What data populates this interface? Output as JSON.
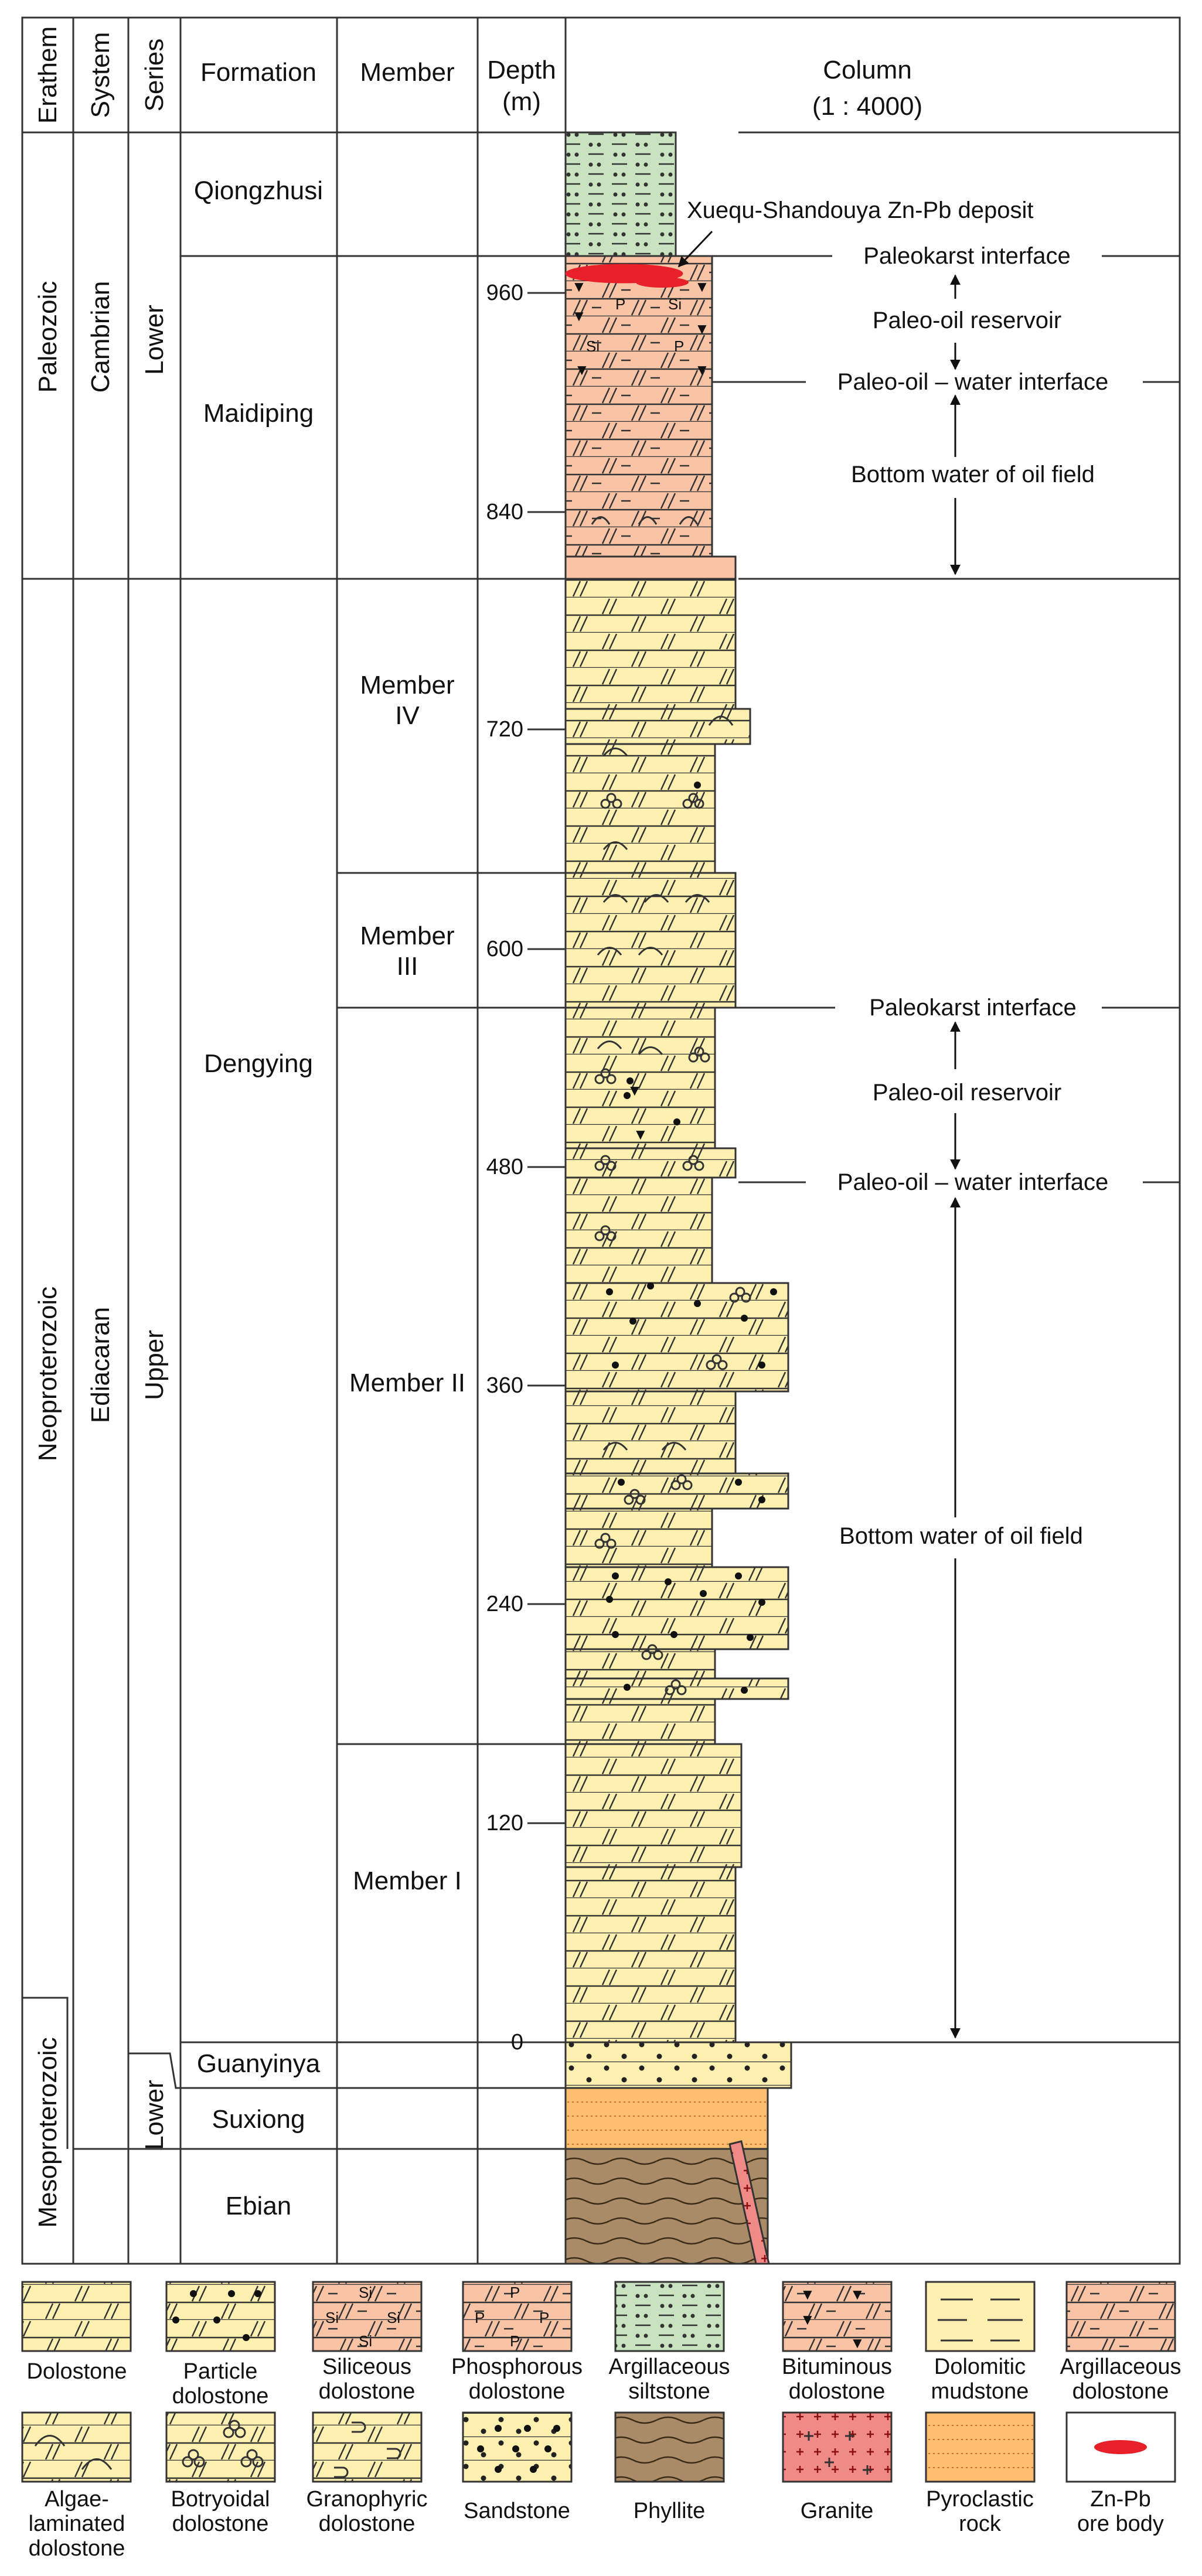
{
  "headers": {
    "erathem": "Erathem",
    "system": "System",
    "series": "Series",
    "formation": "Formation",
    "member": "Member",
    "depth": "Depth",
    "depth_unit": "(m)",
    "column": "Column",
    "column_scale": "(1 : 4000)"
  },
  "erathems": {
    "paleozoic": "Paleozoic",
    "neoproterozoic": "Neoproterozoic",
    "mesoproterozoic": "Mesoproterozoic"
  },
  "systems": {
    "cambrian": "Cambrian",
    "ediacaran": "Ediacaran"
  },
  "series": {
    "cambrian_lower": "Lower",
    "ediacaran_upper": "Upper",
    "ediacaran_lower": "Lower"
  },
  "formations": {
    "qiongzhusi": "Qiongzhusi",
    "maidiping": "Maidiping",
    "dengying": "Dengying",
    "guanyinya": "Guanyinya",
    "suxiong": "Suxiong",
    "ebian": "Ebian"
  },
  "members": {
    "iv_line1": "Member",
    "iv_line2": "IV",
    "iii_line1": "Member",
    "iii_line2": "III",
    "ii": "Member II",
    "i": "Member I"
  },
  "depth_ticks": [
    "960",
    "840",
    "720",
    "600",
    "480",
    "360",
    "240",
    "120",
    "0"
  ],
  "annotations": {
    "deposit": "Xuequ-Shandouya Zn-Pb deposit",
    "upper_paleokarst": "Paleokarst interface",
    "upper_reservoir": "Paleo-oil reservoir",
    "upper_owc": "Paleo-oil – water interface",
    "upper_bottom_water": "Bottom water of oil field",
    "lower_paleokarst": "Paleokarst interface",
    "lower_reservoir": "Paleo-oil reservoir",
    "lower_owc": "Paleo-oil – water interface",
    "lower_bottom_water": "Bottom water of oil field"
  },
  "legend": [
    {
      "id": "dolostone",
      "lines": [
        "Dolostone"
      ]
    },
    {
      "id": "particle",
      "lines": [
        "Particle",
        "dolostone"
      ]
    },
    {
      "id": "siliceous",
      "lines": [
        "Siliceous",
        "dolostone"
      ]
    },
    {
      "id": "phosphorous",
      "lines": [
        "Phosphorous",
        "dolostone"
      ]
    },
    {
      "id": "argsilt",
      "lines": [
        "Argillaceous",
        "siltstone"
      ]
    },
    {
      "id": "bituminous",
      "lines": [
        "Bituminous",
        "dolostone"
      ]
    },
    {
      "id": "dolmud",
      "lines": [
        "Dolomitic",
        "mudstone"
      ]
    },
    {
      "id": "argdol",
      "lines": [
        "Argillaceous",
        "dolostone"
      ]
    },
    {
      "id": "algae",
      "lines": [
        "Algae-",
        "laminated",
        "dolostone"
      ]
    },
    {
      "id": "botryoidal",
      "lines": [
        "Botryoidal",
        "dolostone"
      ]
    },
    {
      "id": "granophyric",
      "lines": [
        "Granophyric",
        "dolostone"
      ]
    },
    {
      "id": "sandstone",
      "lines": [
        "Sandstone"
      ]
    },
    {
      "id": "phyllite",
      "lines": [
        "Phyllite"
      ]
    },
    {
      "id": "granite",
      "lines": [
        "Granite"
      ]
    },
    {
      "id": "pyroclastic",
      "lines": [
        "Pyroclastic",
        "rock"
      ]
    },
    {
      "id": "orebody",
      "lines": [
        "Zn-Pb",
        "ore body"
      ]
    }
  ],
  "colors": {
    "dolostone": "#fdf0b0",
    "maidiping": "#f9c3a6",
    "siltstone": "#c9e3c0",
    "phyllite": "#a98b67",
    "pyroclastic": "#fbbd6e",
    "granite": "#f08a87",
    "ore": "#e8202a",
    "line": "#333333"
  }
}
